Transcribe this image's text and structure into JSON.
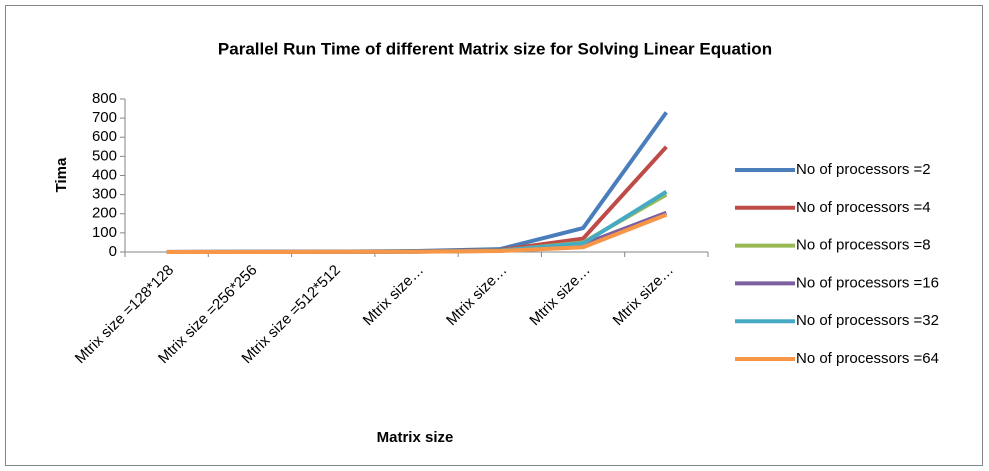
{
  "chart_data": {
    "type": "line",
    "title": "Parallel Run Time of different  Matrix size for Solving Linear Equation",
    "x_label": "Matrix size",
    "y_label": "Tima",
    "categories": [
      "Mtrix size =128*128",
      "Mtrix size =256*256",
      "Mtrix size =512*512",
      "Mtrix size…",
      "Mtrix size…",
      "Mtrix size…",
      "Mtrix size…"
    ],
    "series": [
      {
        "name": "No of processors =2",
        "color": "#4a7ebb",
        "values": [
          0.5,
          1,
          2,
          5,
          15,
          125,
          730
        ]
      },
      {
        "name": "No of processors =4",
        "color": "#be4b48",
        "values": [
          0.3,
          0.6,
          1,
          3,
          10,
          70,
          550
        ]
      },
      {
        "name": "No of processors =8",
        "color": "#98b954",
        "values": [
          0.2,
          0.4,
          0.8,
          2,
          7,
          50,
          300
        ]
      },
      {
        "name": "No of processors =16",
        "color": "#7d60a0",
        "values": [
          0.2,
          0.4,
          0.8,
          2,
          6,
          40,
          205
        ]
      },
      {
        "name": "No of processors =32",
        "color": "#46aac5",
        "values": [
          0.2,
          0.4,
          0.8,
          2,
          7,
          45,
          315
        ]
      },
      {
        "name": "No of processors =64",
        "color": "#f79646",
        "values": [
          0.1,
          0.3,
          0.6,
          1.5,
          5,
          25,
          195
        ]
      }
    ],
    "ylim": [
      0,
      800
    ],
    "yticks": [
      0,
      100,
      200,
      300,
      400,
      500,
      600,
      700,
      800
    ],
    "grid": false,
    "legend": "right"
  }
}
